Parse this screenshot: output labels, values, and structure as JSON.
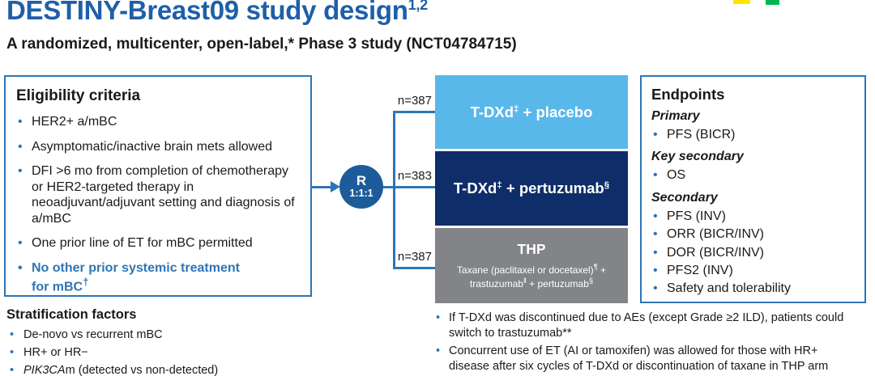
{
  "colors": {
    "title_blue": "#1F5FA9",
    "line_blue": "#2E75B6",
    "circle_blue": "#1D5C9B",
    "arm_placebo_bg": "#59B8EA",
    "arm_pertuzumab_bg": "#0E2D69",
    "arm_thp_bg": "#828487",
    "logo_yellow": "#FFE600",
    "logo_green": "#00B64F"
  },
  "header": {
    "title": "DESTINY-Breast09 study design",
    "title_sup": "1,2",
    "subtitle": "A randomized, multicenter, open-label,* Phase 3 study (NCT04784715)"
  },
  "eligibility": {
    "heading": "Eligibility criteria",
    "items": [
      "HER2+ a/mBC",
      "Asymptomatic/inactive brain mets allowed",
      "DFI >6 mo from completion of chemotherapy or HER2-targeted therapy in neoadjuvant/adjuvant setting and diagnosis of a/mBC",
      "One prior line of ET for mBC permitted"
    ],
    "highlight_item": "No other prior systemic treatment for mBC",
    "highlight_sup": "†"
  },
  "stratification": {
    "heading": "Stratification factors",
    "items": [
      "De-novo vs recurrent mBC",
      "HR+ or HR−"
    ],
    "item_gene": {
      "italic": "PIK3CA",
      "rest": "m (detected vs non-detected)"
    }
  },
  "randomization": {
    "r": "R",
    "ratio": "1:1:1"
  },
  "arms": [
    {
      "n": "n=387",
      "label_pre": "T-DXd",
      "label_sup": "‡",
      "label_post": " + placebo"
    },
    {
      "n": "n=383",
      "label_pre": "T-DXd",
      "label_sup": "‡",
      "label_post": " + pertuzumab",
      "label_sup2": "§"
    },
    {
      "n": "n=387",
      "label": "THP",
      "sub_t1": "Taxane (paclitaxel or docetaxel)",
      "sub_s1": "¶",
      "sub_t2": " + trastuzumab",
      "sub_s2": "‖",
      "sub_t3": " + pertuzumab",
      "sub_s3": "§"
    }
  ],
  "endpoints": {
    "heading": "Endpoints",
    "sections": [
      {
        "label": "Primary",
        "items": [
          "PFS (BICR)"
        ]
      },
      {
        "label": "Key secondary",
        "items": [
          "OS"
        ]
      },
      {
        "label": "Secondary",
        "items": [
          "PFS (INV)",
          "ORR (BICR/INV)",
          "DOR (BICR/INV)",
          "PFS2 (INV)",
          "Safety and tolerability"
        ]
      }
    ]
  },
  "footnotes": [
    "If T-DXd was discontinued due to AEs (except Grade ≥2 ILD), patients could switch to trastuzumab**",
    "Concurrent use of ET (AI or tamoxifen) was allowed for those with HR+ disease after six cycles of T-DXd or discontinuation of taxane in THP arm"
  ]
}
